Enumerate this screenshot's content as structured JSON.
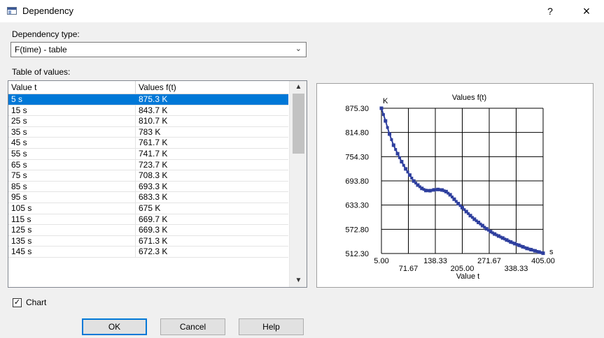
{
  "window": {
    "title": "Dependency",
    "help_label": "?",
    "close_label": "×"
  },
  "dependency_type": {
    "label": "Dependency type:",
    "value": "F(time) - table"
  },
  "table": {
    "label": "Table of values:",
    "headers": [
      "Value t",
      "Values f(t)"
    ],
    "selected_row": 0,
    "rows": [
      [
        "5 s",
        "875.3 K"
      ],
      [
        "15 s",
        "843.7 K"
      ],
      [
        "25 s",
        "810.7 K"
      ],
      [
        "35 s",
        "783 K"
      ],
      [
        "45 s",
        "761.7 K"
      ],
      [
        "55 s",
        "741.7 K"
      ],
      [
        "65 s",
        "723.7 K"
      ],
      [
        "75 s",
        "708.3 K"
      ],
      [
        "85 s",
        "693.3 K"
      ],
      [
        "95 s",
        "683.3 K"
      ],
      [
        "105 s",
        "675 K"
      ],
      [
        "115 s",
        "669.7 K"
      ],
      [
        "125 s",
        "669.3 K"
      ],
      [
        "135 s",
        "671.3 K"
      ],
      [
        "145 s",
        "672.3 K"
      ]
    ]
  },
  "chart_toggle": {
    "label": "Chart",
    "checked": true
  },
  "buttons": {
    "ok": "OK",
    "cancel": "Cancel",
    "help": "Help"
  },
  "chart_data": {
    "type": "line",
    "title": "Values f(t)",
    "xlabel": "Value t",
    "x_unit": "s",
    "y_unit": "K",
    "xlim": [
      5,
      405
    ],
    "ylim": [
      512.3,
      875.3
    ],
    "x_ticks_top": [
      "5.00",
      "138.33",
      "271.67",
      "405.00"
    ],
    "x_ticks_bottom": [
      "71.67",
      "205.00",
      "338.33"
    ],
    "y_ticks": [
      "875.30",
      "814.80",
      "754.30",
      "693.80",
      "633.30",
      "572.80",
      "512.30"
    ],
    "grid": true,
    "series_color": "#2e3f9e",
    "x": [
      5,
      15,
      25,
      35,
      45,
      55,
      65,
      75,
      85,
      95,
      105,
      115,
      125,
      135,
      145,
      155,
      165,
      175,
      185,
      195,
      205,
      215,
      225,
      235,
      245,
      255,
      265,
      275,
      285,
      295,
      305,
      315,
      325,
      335,
      345,
      355,
      365,
      375,
      385,
      395,
      405
    ],
    "y": [
      875.3,
      843.7,
      810.7,
      783,
      761.7,
      741.7,
      723.7,
      708.3,
      693.3,
      683.3,
      675,
      669.7,
      669.3,
      671.3,
      672.3,
      671,
      667,
      659,
      648,
      637,
      627,
      617,
      607,
      598,
      590,
      582,
      574,
      567,
      561,
      556,
      551,
      546,
      541,
      537,
      533,
      529,
      525,
      522,
      519,
      516,
      513
    ]
  }
}
